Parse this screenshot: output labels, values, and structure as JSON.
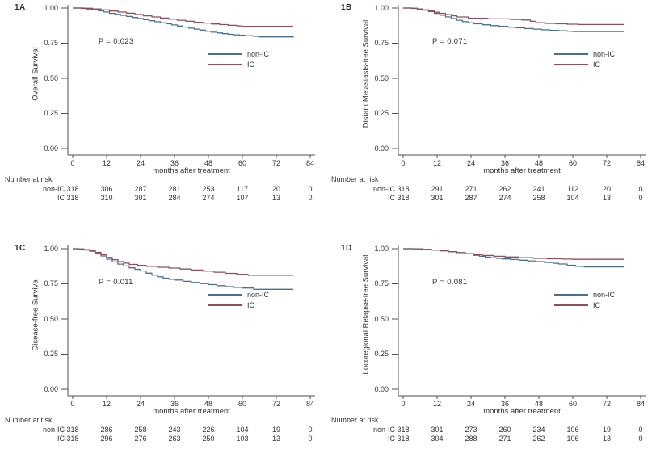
{
  "figure": {
    "background": "#ffffff"
  },
  "colors": {
    "non_ic": "#4a708f",
    "ic": "#8e4e59",
    "axis": "#4f4f4f",
    "text": "#333333"
  },
  "shared": {
    "x_label": "months after treatment",
    "x_ticks": [
      0,
      12,
      24,
      36,
      48,
      60,
      72,
      84
    ],
    "y_ticks": [
      "1.00",
      "0.75",
      "0.50",
      "0.25",
      "0.00"
    ],
    "risk_header": "Number at risk",
    "legend": [
      "non-IC",
      "IC"
    ],
    "xlim": [
      0,
      84
    ],
    "ylim": [
      0,
      1
    ],
    "grid": "off",
    "legend_position": "right-middle-of-plot"
  },
  "chart_data": [
    {
      "type": "line",
      "panel_label": "1A",
      "ylabel": "Overall Survival",
      "xlabel": "months after treatment",
      "p_value": "P = 0.023",
      "series": [
        {
          "name": "non-IC",
          "x": [
            0,
            3,
            5,
            7,
            9,
            11,
            13,
            15,
            17,
            19,
            21,
            23,
            25,
            27,
            29,
            31,
            33,
            35,
            37,
            39,
            41,
            43,
            45,
            47,
            49,
            51,
            53,
            55,
            57,
            59,
            61,
            64,
            66,
            78
          ],
          "y": [
            1.0,
            0.997,
            0.993,
            0.987,
            0.981,
            0.972,
            0.962,
            0.955,
            0.948,
            0.94,
            0.933,
            0.925,
            0.917,
            0.91,
            0.903,
            0.895,
            0.888,
            0.88,
            0.872,
            0.865,
            0.857,
            0.85,
            0.843,
            0.835,
            0.828,
            0.823,
            0.818,
            0.813,
            0.81,
            0.807,
            0.803,
            0.799,
            0.795,
            0.79
          ]
        },
        {
          "name": "IC",
          "x": [
            0,
            4,
            7,
            10,
            13,
            16,
            19,
            22,
            25,
            28,
            31,
            34,
            37,
            40,
            43,
            46,
            49,
            52,
            55,
            58,
            60,
            78
          ],
          "y": [
            1.0,
            0.998,
            0.993,
            0.987,
            0.979,
            0.971,
            0.963,
            0.954,
            0.945,
            0.937,
            0.929,
            0.921,
            0.913,
            0.906,
            0.899,
            0.893,
            0.887,
            0.882,
            0.877,
            0.873,
            0.87,
            0.87
          ]
        }
      ],
      "number_at_risk": {
        "columns": [
          0,
          12,
          24,
          36,
          48,
          60,
          72,
          84
        ],
        "rows": [
          {
            "label": "non-IC",
            "values": [
              "318",
              "306",
              "287",
              "281",
              "253",
              "117",
              "20",
              "0"
            ]
          },
          {
            "label": "IC",
            "values": [
              "318",
              "310",
              "301",
              "284",
              "274",
              "107",
              "13",
              "0"
            ]
          }
        ]
      }
    },
    {
      "type": "line",
      "panel_label": "1B",
      "ylabel": "Distant Metastasis-free Survival",
      "xlabel": "months after treatment",
      "p_value": "P = 0.071",
      "series": [
        {
          "name": "non-IC",
          "x": [
            0,
            3,
            5,
            7,
            9,
            11,
            13,
            15,
            17,
            19,
            21,
            23,
            25,
            28,
            31,
            34,
            37,
            40,
            43,
            46,
            49,
            52,
            55,
            58,
            60,
            78
          ],
          "y": [
            1.0,
            0.997,
            0.992,
            0.985,
            0.975,
            0.962,
            0.949,
            0.937,
            0.925,
            0.913,
            0.903,
            0.895,
            0.888,
            0.881,
            0.875,
            0.87,
            0.864,
            0.859,
            0.854,
            0.85,
            0.845,
            0.841,
            0.838,
            0.835,
            0.833,
            0.833
          ]
        },
        {
          "name": "IC",
          "x": [
            0,
            3,
            5,
            7,
            9,
            11,
            13,
            15,
            17,
            19,
            23,
            30,
            38,
            42,
            45,
            47,
            50,
            54,
            58,
            62,
            78
          ],
          "y": [
            1.0,
            0.998,
            0.993,
            0.987,
            0.979,
            0.97,
            0.962,
            0.953,
            0.945,
            0.937,
            0.927,
            0.923,
            0.919,
            0.915,
            0.906,
            0.896,
            0.891,
            0.888,
            0.885,
            0.883,
            0.883
          ]
        }
      ],
      "number_at_risk": {
        "columns": [
          0,
          12,
          24,
          36,
          48,
          60,
          72,
          84
        ],
        "rows": [
          {
            "label": "non-IC",
            "values": [
              "318",
              "291",
              "271",
              "262",
              "241",
              "112",
              "20",
              "0"
            ]
          },
          {
            "label": "IC",
            "values": [
              "318",
              "301",
              "287",
              "274",
              "258",
              "104",
              "13",
              "0"
            ]
          }
        ]
      }
    },
    {
      "type": "line",
      "panel_label": "1C",
      "ylabel": "Disease-free Survival",
      "xlabel": "months after treatment",
      "p_value": "P = 0.011",
      "series": [
        {
          "name": "non-IC",
          "x": [
            0,
            2,
            4,
            6,
            8,
            10,
            12,
            14,
            16,
            18,
            20,
            22,
            24,
            26,
            28,
            30,
            32,
            34,
            36,
            39,
            42,
            45,
            48,
            51,
            54,
            57,
            60,
            64,
            78
          ],
          "y": [
            1.0,
            0.997,
            0.991,
            0.982,
            0.968,
            0.948,
            0.925,
            0.906,
            0.89,
            0.877,
            0.864,
            0.853,
            0.842,
            0.826,
            0.812,
            0.8,
            0.79,
            0.783,
            0.777,
            0.768,
            0.76,
            0.752,
            0.744,
            0.737,
            0.73,
            0.725,
            0.72,
            0.711,
            0.711
          ]
        },
        {
          "name": "IC",
          "x": [
            0,
            2,
            4,
            6,
            8,
            10,
            12,
            14,
            16,
            18,
            20,
            23,
            26,
            30,
            34,
            38,
            42,
            46,
            50,
            54,
            58,
            62,
            78
          ],
          "y": [
            1.0,
            0.998,
            0.993,
            0.985,
            0.974,
            0.958,
            0.938,
            0.922,
            0.908,
            0.897,
            0.888,
            0.881,
            0.875,
            0.868,
            0.862,
            0.855,
            0.848,
            0.841,
            0.833,
            0.825,
            0.818,
            0.811,
            0.811
          ]
        }
      ],
      "number_at_risk": {
        "columns": [
          0,
          12,
          24,
          36,
          48,
          60,
          72,
          84
        ],
        "rows": [
          {
            "label": "non-IC",
            "values": [
              "318",
              "286",
              "258",
              "243",
              "226",
              "104",
              "19",
              "0"
            ]
          },
          {
            "label": "IC",
            "values": [
              "318",
              "296",
              "276",
              "263",
              "250",
              "103",
              "13",
              "0"
            ]
          }
        ]
      }
    },
    {
      "type": "line",
      "panel_label": "1D",
      "ylabel": "Locoregional Relapse-free Survival",
      "xlabel": "months after treatment",
      "p_value": "P = 0.081",
      "series": [
        {
          "name": "non-IC",
          "x": [
            0,
            4,
            7,
            10,
            13,
            16,
            19,
            22,
            25,
            27,
            29,
            31,
            33,
            35,
            38,
            41,
            44,
            47,
            50,
            53,
            55,
            58,
            61,
            64,
            78
          ],
          "y": [
            1.0,
            0.999,
            0.996,
            0.991,
            0.985,
            0.979,
            0.972,
            0.964,
            0.953,
            0.946,
            0.94,
            0.935,
            0.931,
            0.927,
            0.923,
            0.918,
            0.913,
            0.908,
            0.902,
            0.896,
            0.891,
            0.882,
            0.875,
            0.87,
            0.87
          ]
        },
        {
          "name": "IC",
          "x": [
            0,
            4,
            7,
            10,
            13,
            16,
            19,
            22,
            25,
            28,
            32,
            36,
            41,
            46,
            51,
            56,
            60,
            78
          ],
          "y": [
            1.0,
            0.999,
            0.996,
            0.991,
            0.985,
            0.979,
            0.972,
            0.965,
            0.958,
            0.952,
            0.946,
            0.941,
            0.936,
            0.931,
            0.928,
            0.926,
            0.924,
            0.924
          ]
        }
      ],
      "number_at_risk": {
        "columns": [
          0,
          12,
          24,
          36,
          48,
          60,
          72,
          84
        ],
        "rows": [
          {
            "label": "non-IC",
            "values": [
              "318",
              "301",
              "273",
              "260",
              "234",
              "106",
              "19",
              "0"
            ]
          },
          {
            "label": "IC",
            "values": [
              "318",
              "304",
              "288",
              "271",
              "262",
              "106",
              "13",
              "0"
            ]
          }
        ]
      }
    }
  ]
}
